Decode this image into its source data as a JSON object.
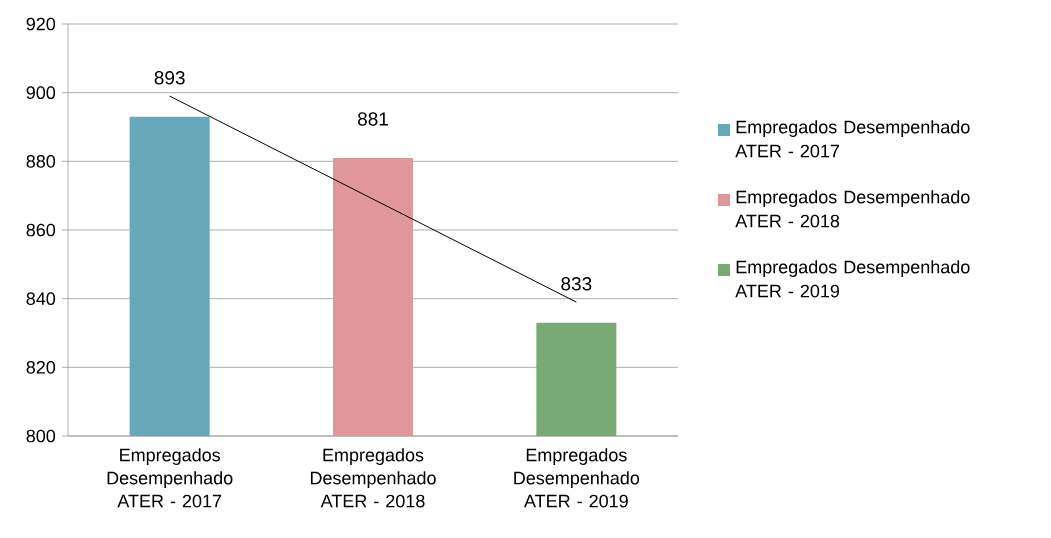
{
  "chart_data": {
    "type": "bar",
    "categories": [
      "Empregados Desempenhado ATER - 2017",
      "Empregados Desempenhado ATER - 2018",
      "Empregados Desempenhado ATER - 2019"
    ],
    "series": [
      {
        "name": "Empregados Desempenhado ATER - 2017",
        "color": "#67a9bb",
        "values": [
          893,
          null,
          null
        ],
        "value_labels": [
          "893",
          null,
          null
        ]
      },
      {
        "name": "Empregados Desempenhado ATER - 2018",
        "color": "#df9797",
        "values": [
          null,
          881,
          null
        ],
        "value_labels": [
          null,
          "881",
          null
        ]
      },
      {
        "name": "Empregados Desempenhado ATER - 2019",
        "color": "#78aa76",
        "values": [
          null,
          null,
          833
        ],
        "value_labels": [
          null,
          null,
          "833"
        ]
      },
      {
        "type": "line",
        "color": "#000000",
        "values": [
          899,
          869,
          839
        ]
      }
    ],
    "ylim": [
      800,
      920
    ],
    "yticks": [
      800,
      820,
      840,
      860,
      880,
      900,
      920
    ],
    "grid": "y",
    "legend": "right"
  }
}
